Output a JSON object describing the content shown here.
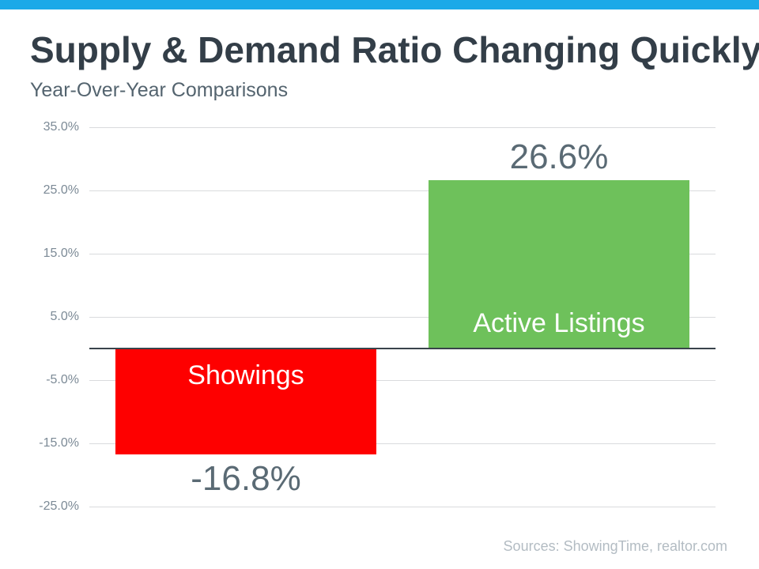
{
  "header": {
    "title": "Supply & Demand Ratio Changing Quickly",
    "subtitle": "Year-Over-Year Comparisons",
    "accent_bar_color": "#1ba9e8"
  },
  "footer": {
    "sources": "Sources: ShowingTime, realtor.com"
  },
  "chart_data": {
    "type": "bar",
    "title": "Supply & Demand Ratio Changing Quickly",
    "subtitle": "Year-Over-Year Comparisons",
    "categories": [
      "Showings",
      "Active Listings"
    ],
    "values": [
      -16.8,
      26.6
    ],
    "value_labels": [
      "-16.8%",
      "26.6%"
    ],
    "bar_colors": [
      "#fe0000",
      "#6ec15b"
    ],
    "bar_label_color": "#ffffff",
    "value_label_color": "#5a6a74",
    "xlabel": "",
    "ylabel": "",
    "ylim": [
      -25,
      35
    ],
    "yticks": [
      35,
      25,
      15,
      5,
      -5,
      -15,
      -25
    ],
    "ytick_labels": [
      "35.0%",
      "25.0%",
      "15.0%",
      "5.0%",
      "-5.0%",
      "-15.0%",
      "-25.0%"
    ],
    "grid": true,
    "legend_position": "none",
    "category_labels_inside_bars_near_axis": true,
    "value_labels_outside_bar_ends": true
  }
}
